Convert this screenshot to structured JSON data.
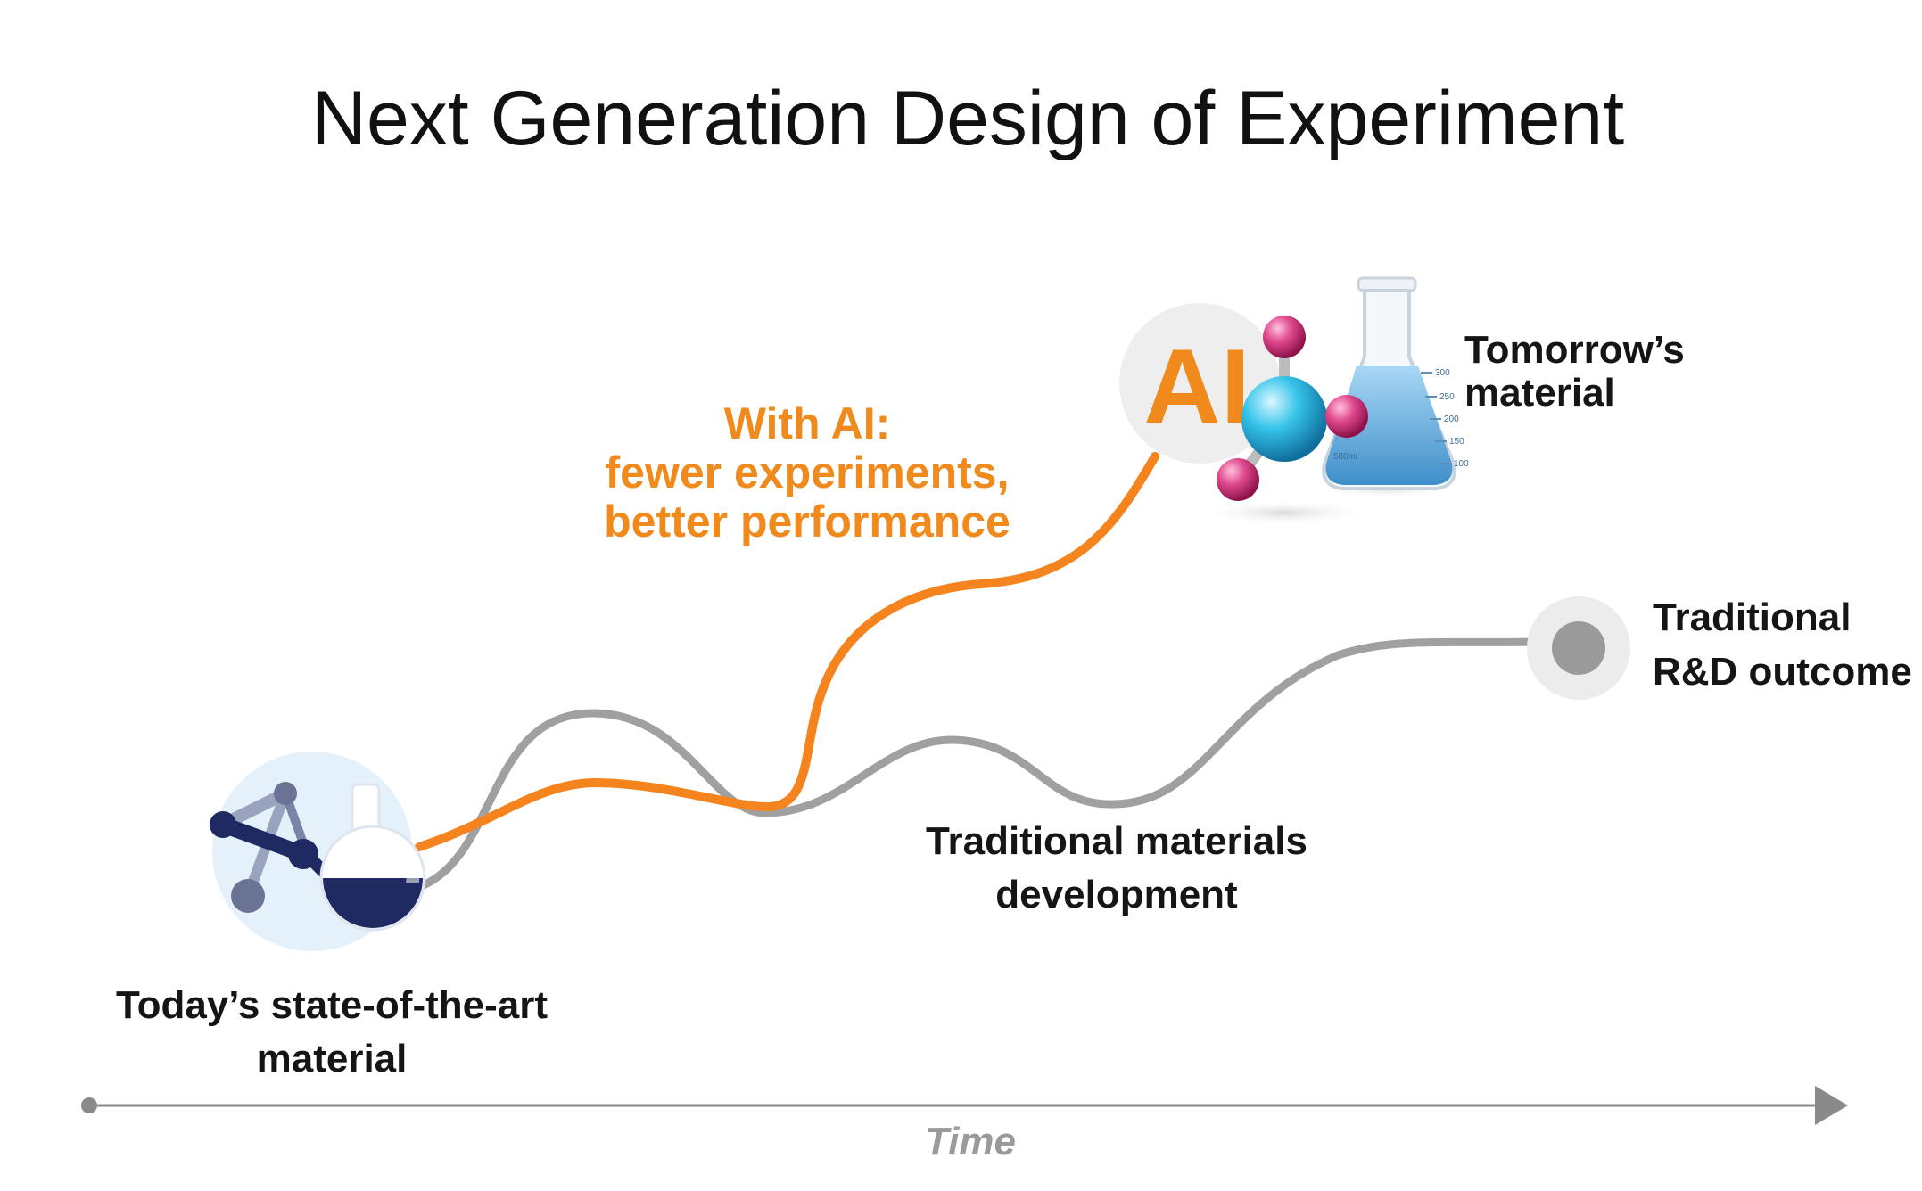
{
  "title": "Next Generation Design of Experiment",
  "labels": {
    "ai_path": [
      "With AI:",
      "fewer experiments,",
      "better performance"
    ],
    "traditional_path": [
      "Traditional materials",
      "development"
    ],
    "start": [
      "Today’s state-of-the-art",
      "material"
    ],
    "ai_end": [
      "Tomorrow’s",
      "material"
    ],
    "traditional_end": [
      "Traditional",
      "R&D outcome"
    ],
    "axis": "Time",
    "ai_badge": "AI"
  },
  "flask_marks": [
    "300",
    "250",
    "200",
    "150",
    "100",
    "500ml"
  ],
  "colors": {
    "ai_path": "#f5841f",
    "traditional_path": "#9e9e9e",
    "axis": "#8a8a8a",
    "navy": "#1f2a63",
    "molecule_pink": "#d8357e",
    "molecule_blue": "#27b9e0"
  },
  "icons": [
    "molecule-flask-icon",
    "ai-molecule-flask-icon",
    "endpoint-dot-icon",
    "axis-arrow-icon"
  ]
}
